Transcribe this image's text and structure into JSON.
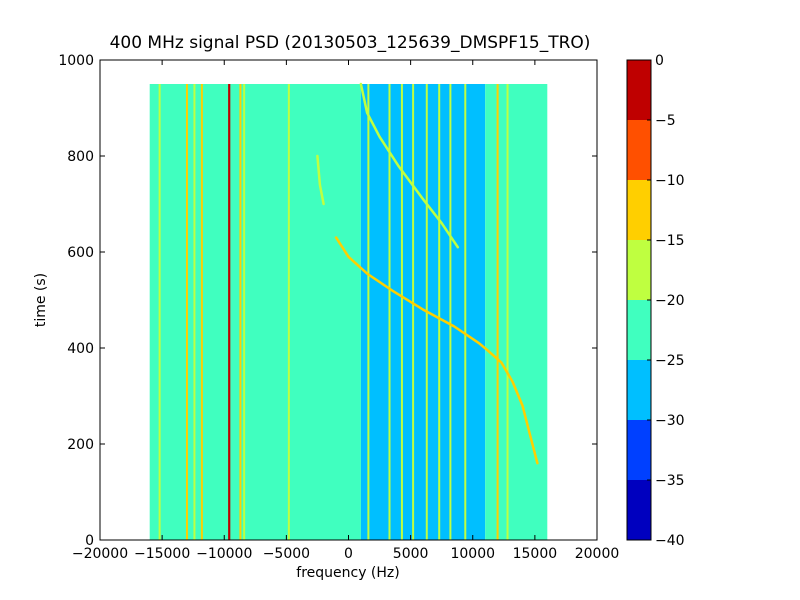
{
  "chart_data": {
    "type": "heatmap",
    "title": "400 MHz signal PSD (20130503_125639_DMSPF15_TRO)",
    "xlabel": "frequency (Hz)",
    "ylabel": "time (s)",
    "xlim": [
      -20000,
      20000
    ],
    "ylim": [
      0,
      1000
    ],
    "xticks": [
      -20000,
      -15000,
      -10000,
      -5000,
      0,
      5000,
      10000,
      15000,
      20000
    ],
    "xtick_labels": [
      "−20000",
      "−15000",
      "−10000",
      "−5000",
      "0",
      "5000",
      "10000",
      "15000",
      "20000"
    ],
    "yticks": [
      0,
      200,
      400,
      600,
      800,
      1000
    ],
    "ytick_labels": [
      "0",
      "200",
      "400",
      "600",
      "800",
      "1000"
    ],
    "data_extent": {
      "x": [
        -16000,
        16000
      ],
      "y": [
        0,
        950
      ]
    },
    "colorbar": {
      "range": [
        -40,
        0
      ],
      "ticks": [
        0,
        -5,
        -10,
        -15,
        -20,
        -25,
        -30,
        -35,
        -40
      ],
      "tick_labels": [
        "0",
        "−5",
        "−10",
        "−15",
        "−20",
        "−25",
        "−30",
        "−35",
        "−40"
      ],
      "bands": [
        {
          "from": -40,
          "to": -35,
          "color": "#0000bf"
        },
        {
          "from": -35,
          "to": -30,
          "color": "#0040ff"
        },
        {
          "from": -30,
          "to": -25,
          "color": "#00bfff"
        },
        {
          "from": -25,
          "to": -20,
          "color": "#40ffbf"
        },
        {
          "from": -20,
          "to": -15,
          "color": "#bfff40"
        },
        {
          "from": -15,
          "to": -10,
          "color": "#ffcf00"
        },
        {
          "from": -10,
          "to": -5,
          "color": "#ff5000"
        },
        {
          "from": -5,
          "to": 0,
          "color": "#bf0000"
        }
      ]
    },
    "regions": [
      {
        "x": [
          -16000,
          1000
        ],
        "level": -22.5
      },
      {
        "x": [
          1000,
          11000
        ],
        "level": -27.5
      },
      {
        "x": [
          11000,
          16000
        ],
        "level": -22.5
      }
    ],
    "vertical_lines": [
      {
        "x": -15200,
        "level": -17.5
      },
      {
        "x": -13000,
        "level": -12.5
      },
      {
        "x": -12400,
        "level": -17.5
      },
      {
        "x": -11800,
        "level": -12.5
      },
      {
        "x": -9600,
        "level": -2.5
      },
      {
        "x": -8700,
        "level": -12.5
      },
      {
        "x": -8400,
        "level": -17.5
      },
      {
        "x": -4800,
        "level": -17.5
      },
      {
        "x": 1600,
        "level": -17.5
      },
      {
        "x": 3300,
        "level": -17.5
      },
      {
        "x": 4300,
        "level": -17.5
      },
      {
        "x": 5200,
        "level": -17.5
      },
      {
        "x": 6300,
        "level": -17.5
      },
      {
        "x": 7300,
        "level": -17.5
      },
      {
        "x": 8200,
        "level": -17.5
      },
      {
        "x": 9400,
        "level": -17.5
      },
      {
        "x": 12000,
        "level": -12.5
      },
      {
        "x": 12800,
        "level": -17.5
      }
    ],
    "traces": [
      {
        "level": -17.5,
        "points": [
          [
            -2500,
            800
          ],
          [
            -2300,
            740
          ],
          [
            -2000,
            700
          ]
        ]
      },
      {
        "level": -17.5,
        "points": [
          [
            1000,
            950
          ],
          [
            1500,
            890
          ],
          [
            2500,
            840
          ],
          [
            4000,
            780
          ],
          [
            6000,
            710
          ],
          [
            7500,
            660
          ],
          [
            8800,
            610
          ]
        ]
      },
      {
        "level": -12.5,
        "points": [
          [
            -1000,
            630
          ],
          [
            0,
            590
          ],
          [
            1500,
            555
          ],
          [
            3500,
            520
          ],
          [
            6000,
            480
          ],
          [
            8500,
            445
          ],
          [
            10500,
            410
          ],
          [
            11200,
            395
          ],
          [
            12300,
            370
          ],
          [
            13200,
            330
          ],
          [
            14000,
            280
          ],
          [
            14600,
            220
          ],
          [
            15200,
            160
          ]
        ]
      }
    ]
  }
}
